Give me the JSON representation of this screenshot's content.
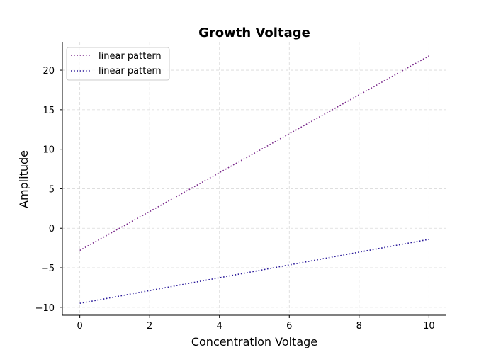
{
  "chart_data": {
    "type": "line",
    "title": "Growth Voltage",
    "xlabel": "Concentration Voltage",
    "ylabel": "Amplitude",
    "xlim": [
      -0.5,
      10.5
    ],
    "ylim": [
      -11,
      23.5
    ],
    "xticks": [
      0,
      2,
      4,
      6,
      8,
      10
    ],
    "yticks": [
      -10,
      -5,
      0,
      5,
      10,
      15,
      20
    ],
    "ytick_labels": [
      "−10",
      "−5",
      "0",
      "5",
      "10",
      "15",
      "20"
    ],
    "grid": true,
    "legend_position": "top-left",
    "series": [
      {
        "name": "linear pattern",
        "color": "#7b2a8c",
        "line_style": "dotted",
        "x": [
          0,
          10
        ],
        "y": [
          -2.8,
          21.8
        ]
      },
      {
        "name": "linear pattern",
        "color": "#2a1a9a",
        "line_style": "dotted",
        "x": [
          0,
          10
        ],
        "y": [
          -9.5,
          -1.4
        ]
      }
    ]
  }
}
